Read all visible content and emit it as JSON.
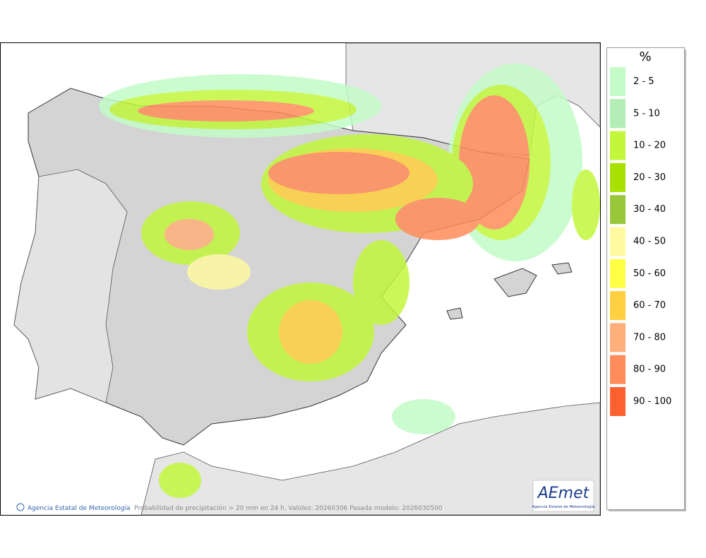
{
  "map": {
    "credit": "Agencia Estatal de Meteorología",
    "caption": "Probabilidad de precipitación > 20 mm en 24 h. Validez: 20260306 Pasada modelo: 2026030500",
    "logo": {
      "text": "AEmet",
      "subtitle": "Agencia Estatal de Meteorología"
    }
  },
  "legend": {
    "title": "%",
    "items": [
      {
        "label": "2 - 5",
        "color": "#c3fcc8"
      },
      {
        "label": "5 - 10",
        "color": "#b2eeb5"
      },
      {
        "label": "10 - 20",
        "color": "#c2f73c"
      },
      {
        "label": "20 - 30",
        "color": "#a8e000"
      },
      {
        "label": "30 - 40",
        "color": "#98c83a"
      },
      {
        "label": "40 - 50",
        "color": "#fffaa0"
      },
      {
        "label": "50 - 60",
        "color": "#ffff44"
      },
      {
        "label": "60 - 70",
        "color": "#ffd040"
      },
      {
        "label": "70 - 80",
        "color": "#ffb07a"
      },
      {
        "label": "80 - 90",
        "color": "#ff8c5a"
      },
      {
        "label": "90 - 100",
        "color": "#ff6030"
      }
    ]
  }
}
